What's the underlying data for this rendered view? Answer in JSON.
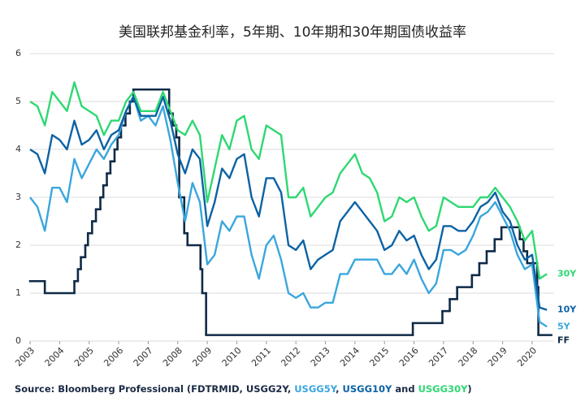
{
  "chart_data": {
    "type": "line",
    "title": "美国联邦基金利率，5年期、10年期和30年期国债收益率",
    "source": [
      {
        "text": "Source: Bloomberg Professional (FDTRMID, USGG2Y, ",
        "color": "#1a2a44"
      },
      {
        "text": "USGG5Y",
        "color": "#3aa6dd"
      },
      {
        "text": ", ",
        "color": "#1a2a44"
      },
      {
        "text": "USGG10Y",
        "color": "#0b62a4"
      },
      {
        "text": " and ",
        "color": "#1a2a44"
      },
      {
        "text": "USGG30Y",
        "color": "#2ed872"
      },
      {
        "text": ")",
        "color": "#1a2a44"
      }
    ],
    "xlim": [
      2003,
      2020.65
    ],
    "xticks": [
      2003,
      2004,
      2005,
      2006,
      2007,
      2008,
      2009,
      2010,
      2011,
      2012,
      2013,
      2014,
      2015,
      2016,
      2017,
      2018,
      2019,
      2020
    ],
    "ylim": [
      0,
      6
    ],
    "yticks": [
      0,
      1,
      2,
      3,
      4,
      5,
      6
    ],
    "grid": true,
    "x": [
      2003,
      2003.25,
      2003.5,
      2003.75,
      2004,
      2004.25,
      2004.5,
      2004.75,
      2005,
      2005.25,
      2005.5,
      2005.75,
      2006,
      2006.25,
      2006.5,
      2006.75,
      2007,
      2007.25,
      2007.5,
      2007.75,
      2008,
      2008.25,
      2008.5,
      2008.75,
      2009,
      2009.25,
      2009.5,
      2009.75,
      2010,
      2010.25,
      2010.5,
      2010.75,
      2011,
      2011.25,
      2011.5,
      2011.75,
      2012,
      2012.25,
      2012.5,
      2012.75,
      2013,
      2013.25,
      2013.5,
      2013.75,
      2014,
      2014.25,
      2014.5,
      2014.75,
      2015,
      2015.25,
      2015.5,
      2015.75,
      2016,
      2016.25,
      2016.5,
      2016.75,
      2017,
      2017.25,
      2017.5,
      2017.75,
      2018,
      2018.25,
      2018.5,
      2018.75,
      2019,
      2019.25,
      2019.5,
      2019.75,
      2020,
      2020.25,
      2020.5
    ],
    "series": [
      {
        "name": "30Y",
        "color": "#2ed872",
        "values": [
          5.0,
          4.9,
          4.5,
          5.2,
          5.0,
          4.8,
          5.4,
          4.9,
          4.8,
          4.7,
          4.3,
          4.6,
          4.6,
          5.0,
          5.2,
          4.8,
          4.8,
          4.8,
          5.2,
          4.8,
          4.4,
          4.3,
          4.6,
          4.3,
          2.9,
          3.6,
          4.3,
          4.0,
          4.6,
          4.7,
          4.0,
          3.8,
          4.5,
          4.4,
          4.3,
          3.0,
          3.0,
          3.2,
          2.6,
          2.8,
          3.0,
          3.1,
          3.5,
          3.7,
          3.9,
          3.5,
          3.4,
          3.1,
          2.5,
          2.6,
          3.0,
          2.9,
          3.0,
          2.6,
          2.3,
          2.4,
          3.0,
          2.9,
          2.8,
          2.8,
          2.8,
          3.0,
          3.0,
          3.2,
          3.0,
          2.8,
          2.5,
          2.1,
          2.3,
          1.3,
          1.4
        ]
      },
      {
        "name": "10Y",
        "color": "#0b62a4",
        "values": [
          4.0,
          3.9,
          3.5,
          4.3,
          4.2,
          4.0,
          4.6,
          4.1,
          4.2,
          4.4,
          4.0,
          4.3,
          4.4,
          4.8,
          5.1,
          4.7,
          4.7,
          4.7,
          5.1,
          4.6,
          3.9,
          3.5,
          4.0,
          3.8,
          2.4,
          2.9,
          3.6,
          3.4,
          3.8,
          3.9,
          3.0,
          2.6,
          3.4,
          3.4,
          3.1,
          2.0,
          1.9,
          2.1,
          1.5,
          1.7,
          1.8,
          1.9,
          2.5,
          2.7,
          2.9,
          2.7,
          2.5,
          2.3,
          1.9,
          2.0,
          2.3,
          2.1,
          2.2,
          1.8,
          1.5,
          1.7,
          2.4,
          2.4,
          2.3,
          2.3,
          2.5,
          2.8,
          2.9,
          3.1,
          2.7,
          2.5,
          2.0,
          1.7,
          1.8,
          0.7,
          0.65
        ]
      },
      {
        "name": "5Y",
        "color": "#3aa6dd",
        "values": [
          3.0,
          2.8,
          2.3,
          3.2,
          3.2,
          2.9,
          3.8,
          3.4,
          3.7,
          4.0,
          3.8,
          4.1,
          4.3,
          4.8,
          5.1,
          4.6,
          4.7,
          4.5,
          4.9,
          4.2,
          3.3,
          2.5,
          3.3,
          2.9,
          1.6,
          1.8,
          2.5,
          2.3,
          2.6,
          2.6,
          1.8,
          1.3,
          2.0,
          2.2,
          1.7,
          1.0,
          0.9,
          1.0,
          0.7,
          0.7,
          0.8,
          0.8,
          1.4,
          1.4,
          1.7,
          1.7,
          1.7,
          1.7,
          1.4,
          1.4,
          1.6,
          1.4,
          1.7,
          1.3,
          1.0,
          1.2,
          1.9,
          1.9,
          1.8,
          1.9,
          2.2,
          2.6,
          2.7,
          2.9,
          2.6,
          2.3,
          1.8,
          1.5,
          1.6,
          0.4,
          0.3
        ]
      },
      {
        "name": "FF",
        "color": "#0f2a47",
        "step": "post",
        "x": [
          2003,
          2003.5,
          2004.5,
          2004.62,
          2004.72,
          2004.87,
          2004.96,
          2005.1,
          2005.23,
          2005.38,
          2005.48,
          2005.6,
          2005.72,
          2005.86,
          2005.96,
          2006.08,
          2006.23,
          2006.38,
          2006.5,
          2007.71,
          2007.83,
          2007.95,
          2008.05,
          2008.22,
          2008.33,
          2008.77,
          2008.83,
          2008.96,
          2015.96,
          2016.96,
          2017.21,
          2017.46,
          2017.96,
          2018.21,
          2018.46,
          2018.73,
          2018.96,
          2019.58,
          2019.71,
          2019.83,
          2020.17,
          2020.21
        ],
        "values": [
          1.25,
          1.0,
          1.25,
          1.5,
          1.75,
          2.0,
          2.25,
          2.5,
          2.75,
          3.0,
          3.25,
          3.5,
          3.75,
          4.0,
          4.25,
          4.5,
          4.75,
          5.0,
          5.25,
          4.75,
          4.5,
          4.25,
          3.0,
          2.25,
          2.0,
          1.5,
          1.0,
          0.125,
          0.375,
          0.625,
          0.875,
          1.125,
          1.375,
          1.625,
          1.875,
          2.125,
          2.375,
          2.125,
          1.875,
          1.625,
          1.125,
          0.125
        ]
      }
    ]
  }
}
